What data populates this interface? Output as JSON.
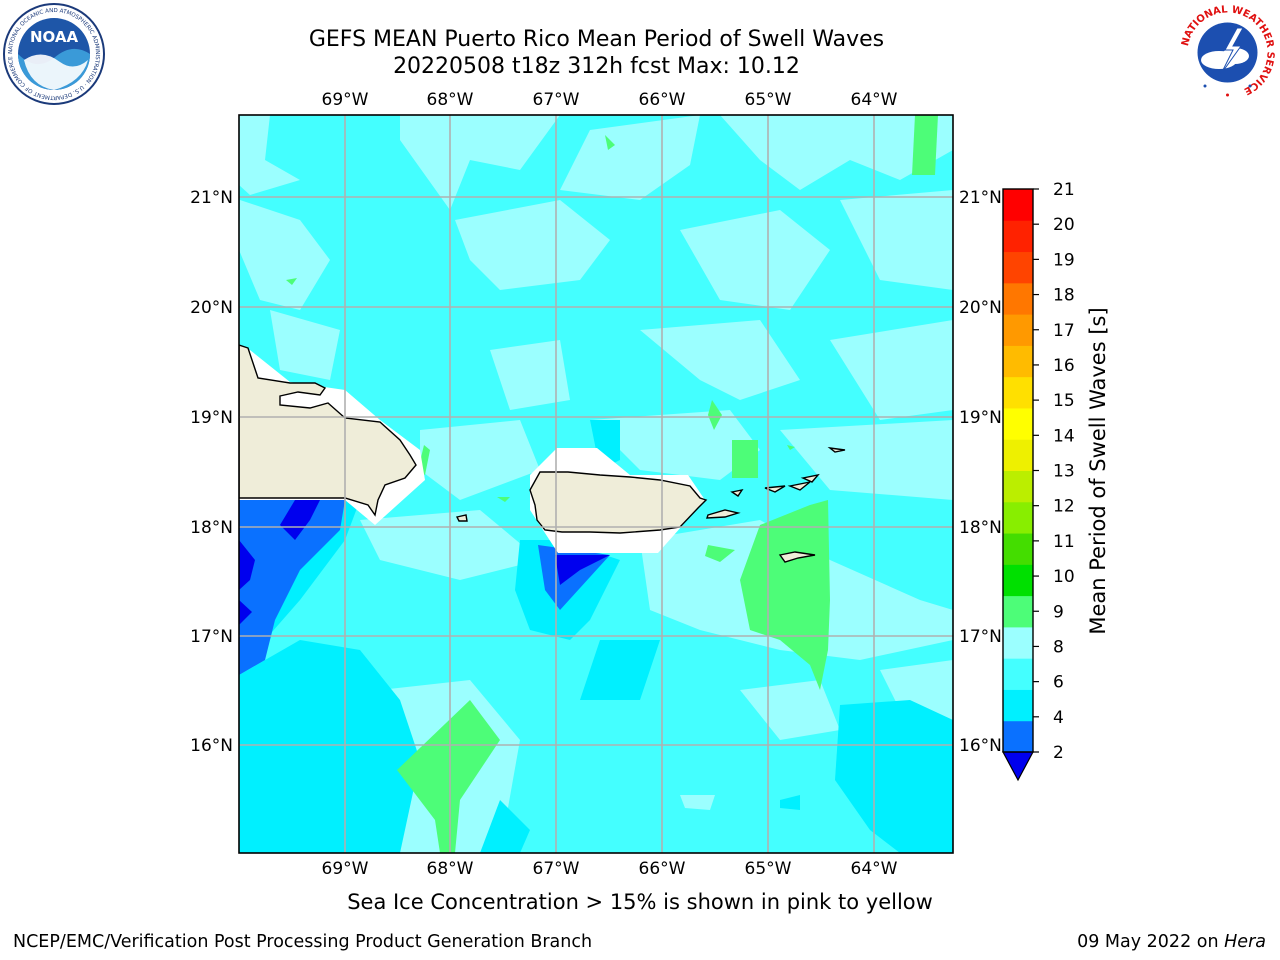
{
  "title": {
    "line1": "GEFS MEAN Puerto Rico Mean Period of Swell Waves",
    "line2": "20220508 t18z 312h fcst   Max: 10.12"
  },
  "map": {
    "top_lon_labels": [
      "69°W",
      "68°W",
      "67°W",
      "66°W",
      "65°W",
      "64°W"
    ],
    "bottom_lon_labels": [
      "69°W",
      "68°W",
      "67°W",
      "66°W",
      "65°W",
      "64°W"
    ],
    "left_lat_labels": [
      "21°N",
      "20°N",
      "19°N",
      "18°N",
      "17°N",
      "16°N"
    ],
    "right_lat_labels": [
      "21°N",
      "20°N",
      "19°N",
      "18°N",
      "17°N",
      "16°N"
    ],
    "colors": {
      "land": "#efedd9",
      "band_2_4": "#0a71ff",
      "band_under_2": "#0000ee",
      "band_4_6": "#00f0ff",
      "band_6_8": "#44ffff",
      "band_8_9": "#9bffff",
      "band_9_10": "#4dfd78",
      "grid": "#b0b0b0"
    }
  },
  "colorbar": {
    "label": "Mean Period of Swell Waves [s]",
    "ticks": [
      "21",
      "20",
      "19",
      "18",
      "17",
      "16",
      "15",
      "14",
      "13",
      "12",
      "11",
      "10",
      "9",
      "8",
      "6",
      "4",
      "2"
    ],
    "colors": [
      "#0000ee",
      "#0a71ff",
      "#00f0ff",
      "#44ffff",
      "#9bffff",
      "#4dfd78",
      "#00e000",
      "#44dd00",
      "#88ee00",
      "#bbee00",
      "#eef000",
      "#ffff00",
      "#ffe000",
      "#ffbb00",
      "#ff9900",
      "#ff7700",
      "#ff4400",
      "#ff2200",
      "#ff0000"
    ]
  },
  "note": "Sea Ice Concentration > 15% is shown in pink to yellow",
  "footer": {
    "left": "NCEP/EMC/Verification Post Processing Product Generation Branch",
    "date": "09 May 2022 on ",
    "machine": "Hera"
  },
  "logos": {
    "noaa_text": "NOAA",
    "noaa_ring_text": "NATIONAL OCEANIC AND ATMOSPHERIC ADMINISTRATION · U.S. DEPARTMENT OF COMMERCE",
    "nws_ring_text": "NATIONAL WEATHER SERVICE"
  }
}
